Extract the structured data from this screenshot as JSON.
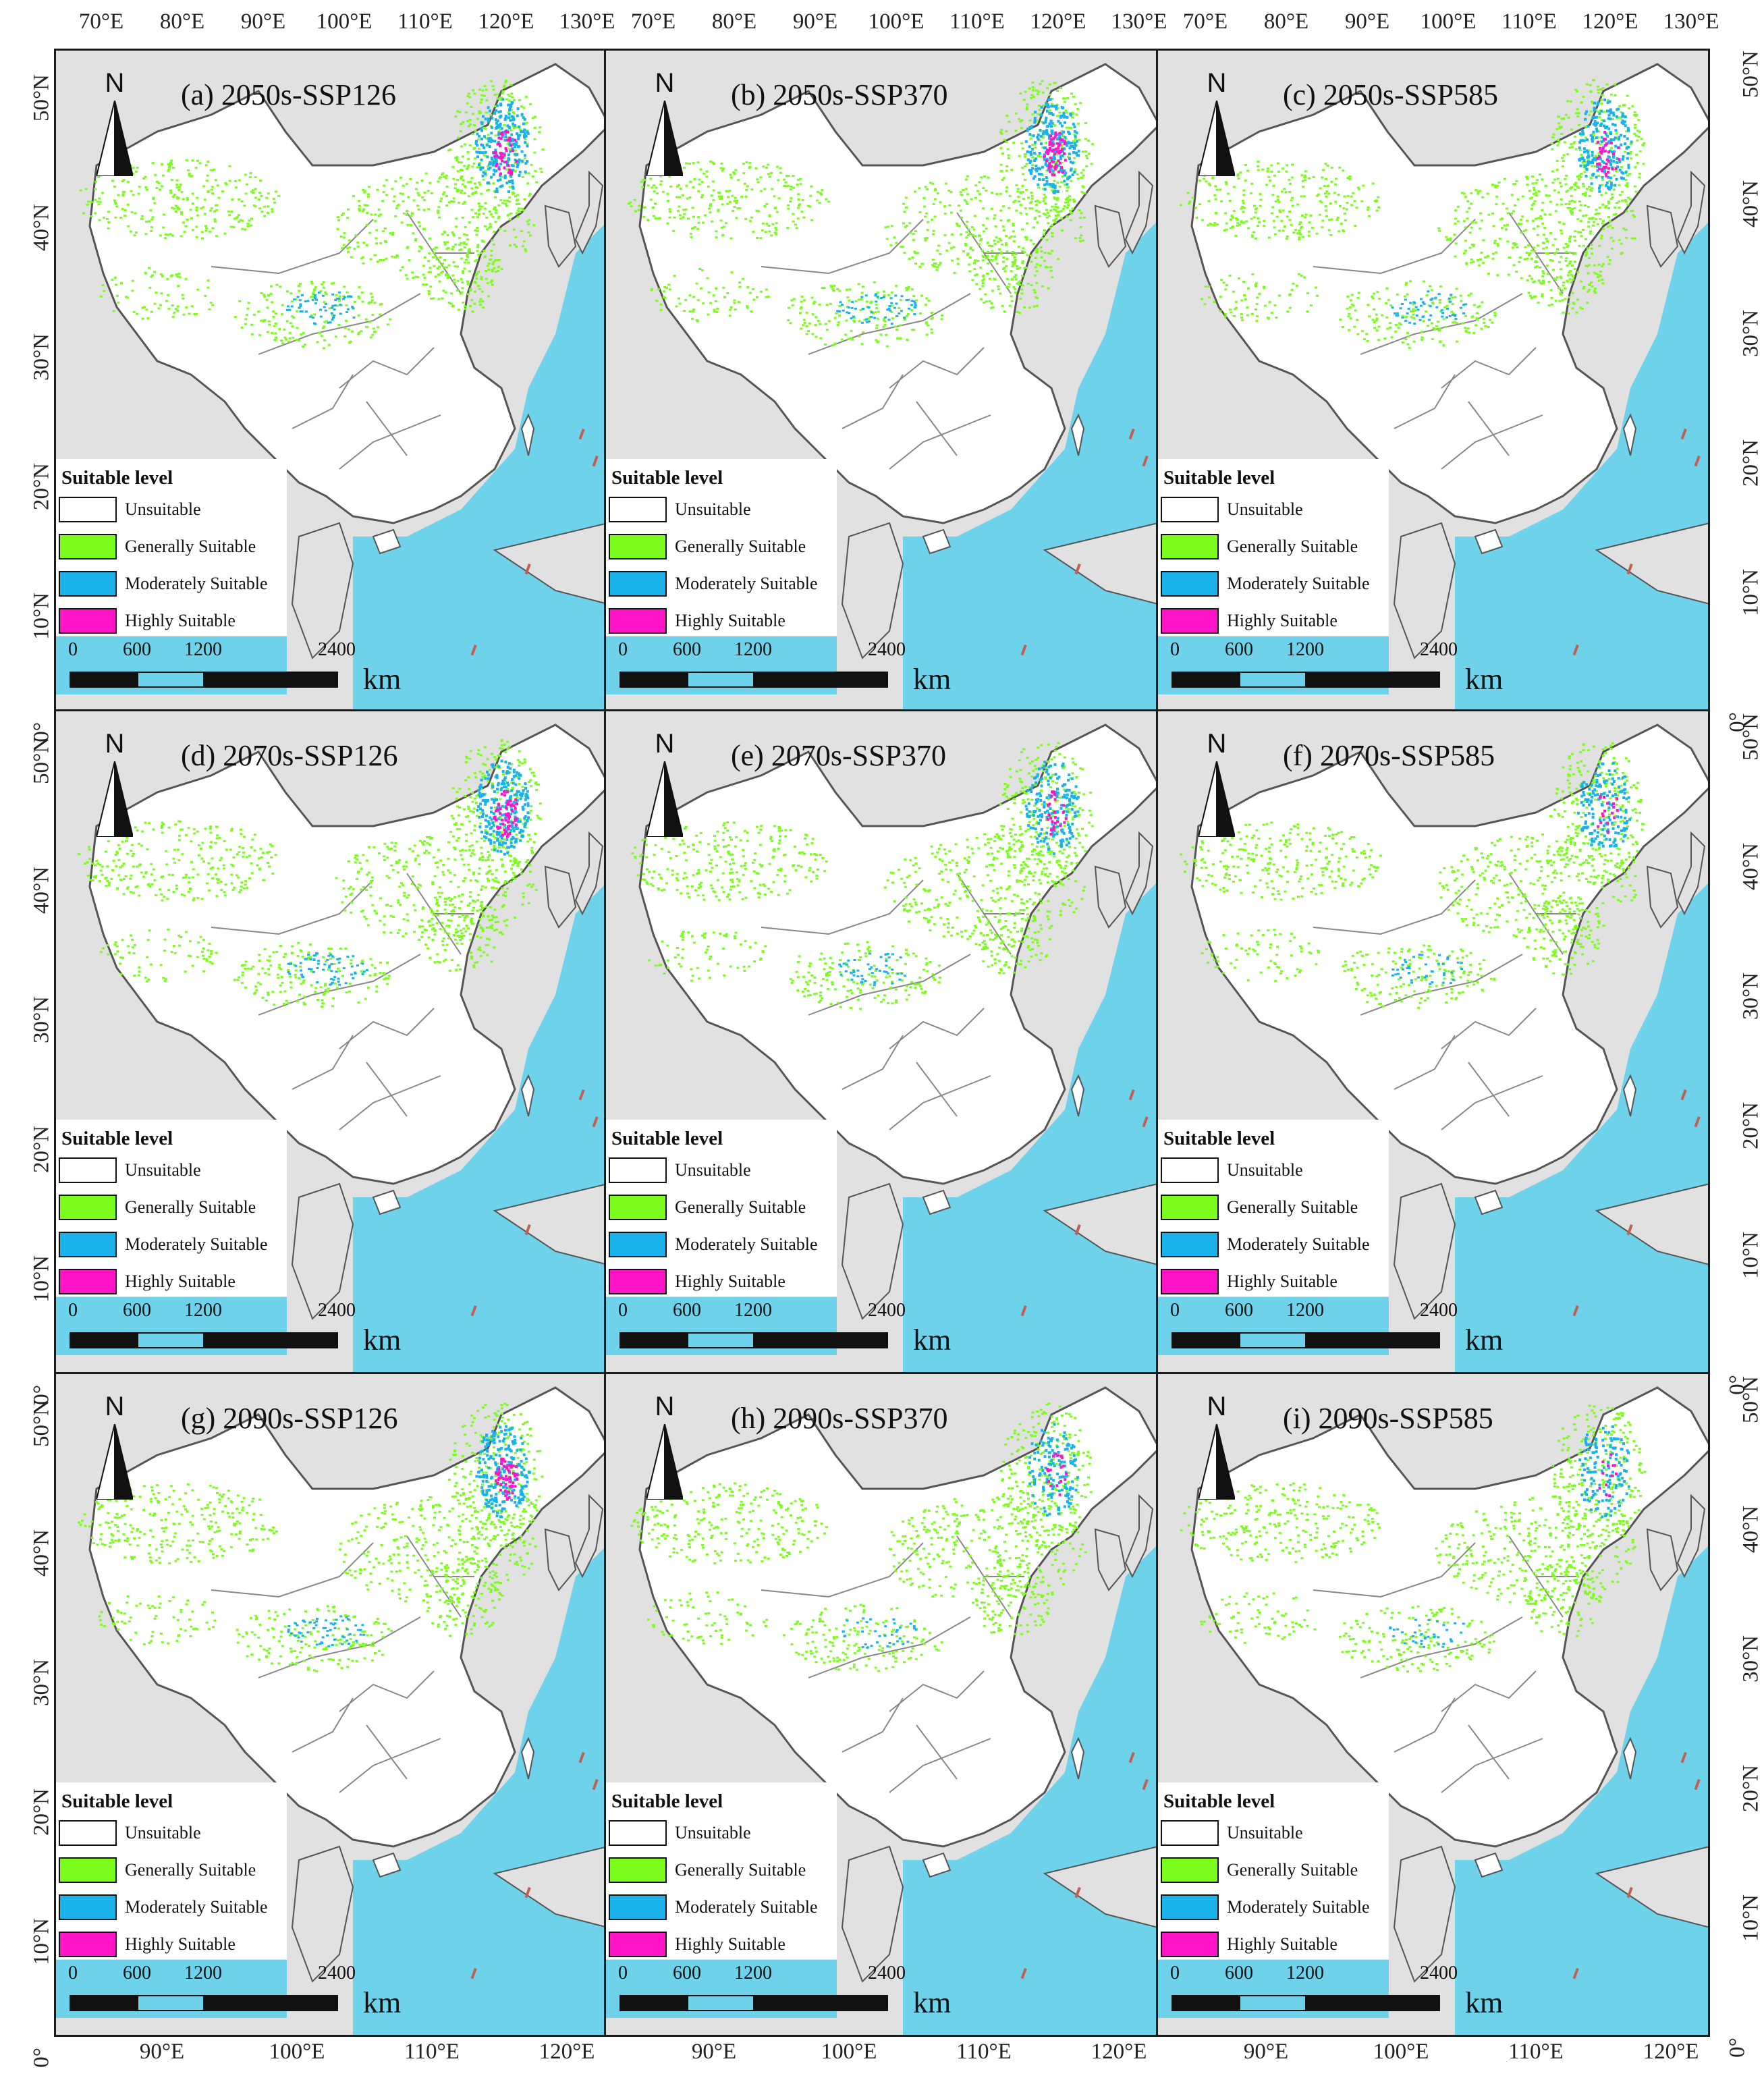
{
  "figure": {
    "top_axis_labels": [
      "70°E",
      "80°E",
      "90°E",
      "100°E",
      "110°E",
      "120°E",
      "130°E"
    ],
    "bottom_axis_labels": [
      "90°E",
      "100°E",
      "110°E",
      "120°E"
    ],
    "left_axis_labels": [
      "50°N",
      "40°N",
      "30°N",
      "20°N",
      "10°N",
      "0°"
    ],
    "right_axis_labels": [
      "50°N",
      "40°N",
      "30°N",
      "20°N",
      "10°N",
      "0°"
    ],
    "north_letter": "N",
    "legend_title": "Suitable level",
    "legend_items": [
      {
        "label": "Unsuitable",
        "color": "#ffffff"
      },
      {
        "label": "Generally Suitable",
        "color": "#7cfc1c"
      },
      {
        "label": "Moderately Suitable",
        "color": "#1ab2ea"
      },
      {
        "label": "Highly Suitable",
        "color": "#ff14c8"
      }
    ],
    "scale_numbers": [
      "0",
      "600",
      "1200",
      "2400"
    ],
    "scale_unit": "km",
    "colors": {
      "land_outside": "#e1e1e1",
      "china": "#ffffff",
      "sea": "#6ed3ea",
      "boundary": "#555555"
    }
  },
  "panels": [
    {
      "title": "(a)  2050s-SSP126",
      "period": "2050s",
      "scenario": "SSP126",
      "moderate_extent": 1.0,
      "high_extent": 0.8
    },
    {
      "title": "(b)  2050s-SSP370",
      "period": "2050s",
      "scenario": "SSP370",
      "moderate_extent": 1.0,
      "high_extent": 1.0
    },
    {
      "title": "(c)  2050s-SSP585",
      "period": "2050s",
      "scenario": "SSP585",
      "moderate_extent": 0.9,
      "high_extent": 0.6
    },
    {
      "title": "(d)  2070s-SSP126",
      "period": "2070s",
      "scenario": "SSP126",
      "moderate_extent": 1.1,
      "high_extent": 1.0
    },
    {
      "title": "(e)  2070s-SSP370",
      "period": "2070s",
      "scenario": "SSP370",
      "moderate_extent": 0.8,
      "high_extent": 0.4
    },
    {
      "title": "(f)  2070s-SSP585",
      "period": "2070s",
      "scenario": "SSP585",
      "moderate_extent": 0.7,
      "high_extent": 0.3
    },
    {
      "title": "(g)  2090s-SSP126",
      "period": "2090s",
      "scenario": "SSP126",
      "moderate_extent": 1.0,
      "high_extent": 0.9
    },
    {
      "title": "(h)  2090s-SSP370",
      "period": "2090s",
      "scenario": "SSP370",
      "moderate_extent": 0.6,
      "high_extent": 0.3
    },
    {
      "title": "(i)  2090s-SSP585",
      "period": "2090s",
      "scenario": "SSP585",
      "moderate_extent": 0.6,
      "high_extent": 0.2
    }
  ]
}
